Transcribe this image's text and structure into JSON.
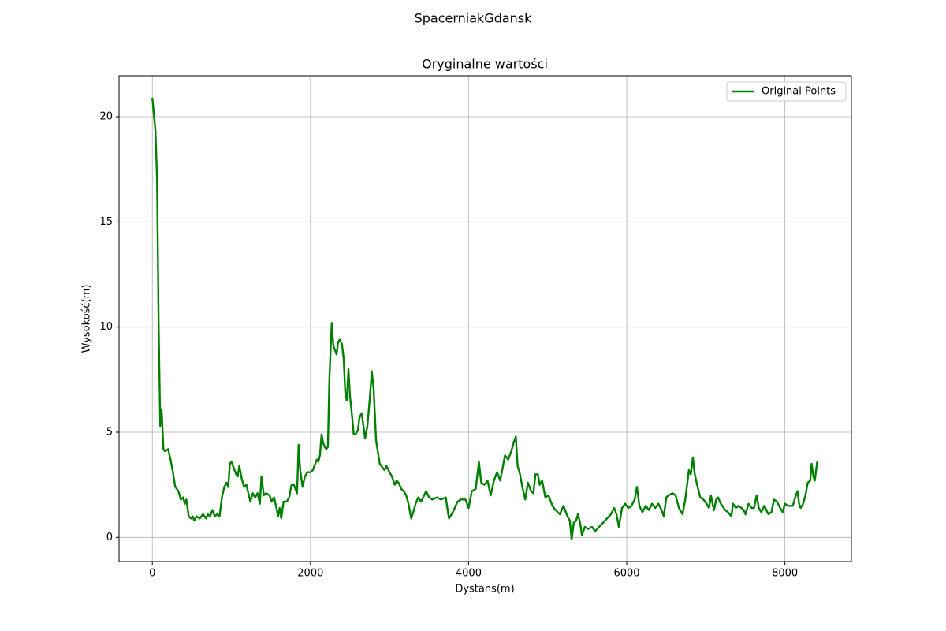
{
  "chart_data": {
    "type": "line",
    "suptitle": "SpacerniakGdansk",
    "title": "Oryginalne wartości",
    "xlabel": "Dystans(m)",
    "ylabel": "Wysokość(m)",
    "x": [
      0,
      40,
      60,
      80,
      100,
      110,
      120,
      140,
      160,
      200,
      230,
      260,
      290,
      330,
      360,
      390,
      410,
      430,
      460,
      490,
      510,
      530,
      560,
      600,
      640,
      680,
      700,
      730,
      760,
      790,
      820,
      850,
      880,
      910,
      940,
      960,
      980,
      1000,
      1020,
      1060,
      1080,
      1100,
      1130,
      1160,
      1190,
      1220,
      1240,
      1270,
      1300,
      1330,
      1360,
      1380,
      1410,
      1440,
      1480,
      1510,
      1540,
      1570,
      1590,
      1610,
      1630,
      1660,
      1700,
      1730,
      1760,
      1790,
      1810,
      1830,
      1850,
      1870,
      1900,
      1930,
      1960,
      2000,
      2030,
      2060,
      2080,
      2100,
      2120,
      2140,
      2160,
      2180,
      2200,
      2220,
      2240,
      2269,
      2290,
      2310,
      2330,
      2350,
      2370,
      2398,
      2420,
      2440,
      2460,
      2480,
      2500,
      2520,
      2547,
      2570,
      2600,
      2620,
      2647,
      2670,
      2690,
      2720,
      2750,
      2776,
      2800,
      2830,
      2876,
      2935,
      2960,
      3000,
      3030,
      3065,
      3090,
      3114,
      3150,
      3180,
      3210,
      3240,
      3274,
      3300,
      3330,
      3363,
      3400,
      3463,
      3500,
      3542,
      3600,
      3650,
      3711,
      3751,
      3800,
      3861,
      3900,
      3960,
      4000,
      4040,
      4090,
      4130,
      4160,
      4200,
      4240,
      4279,
      4320,
      4360,
      4400,
      4430,
      4460,
      4500,
      4540,
      4570,
      4597,
      4620,
      4650,
      4680,
      4716,
      4750,
      4790,
      4820,
      4845,
      4875,
      4900,
      4930,
      4970,
      5010,
      5060,
      5100,
      5154,
      5200,
      5250,
      5280,
      5303,
      5330,
      5360,
      5383,
      5410,
      5433,
      5470,
      5510,
      5560,
      5602,
      5650,
      5700,
      5750,
      5800,
      5841,
      5870,
      5900,
      5940,
      5980,
      6020,
      6060,
      6100,
      6129,
      6160,
      6199,
      6240,
      6280,
      6320,
      6360,
      6400,
      6440,
      6468,
      6500,
      6527,
      6580,
      6617,
      6660,
      6706,
      6740,
      6786,
      6810,
      6836,
      6860,
      6896,
      6930,
      6970,
      7010,
      7040,
      7065,
      7085,
      7104,
      7130,
      7154,
      7190,
      7244,
      7280,
      7323,
      7343,
      7380,
      7413,
      7450,
      7480,
      7502,
      7540,
      7580,
      7610,
      7642,
      7670,
      7701,
      7740,
      7791,
      7830,
      7861,
      7900,
      7940,
      7970,
      8000,
      8040,
      8070,
      8100,
      8130,
      8159,
      8180,
      8199,
      8230,
      8260,
      8289,
      8320,
      8338,
      8360,
      8378,
      8408
    ],
    "series": [
      {
        "name": "Original Points",
        "color": "#008000",
        "values": [
          20.9,
          19.3,
          17,
          10,
          5.3,
          6.1,
          5.9,
          4.2,
          4.1,
          4.2,
          3.7,
          3.1,
          2.4,
          2.2,
          1.8,
          1.9,
          1.6,
          1.8,
          1.0,
          0.9,
          1.0,
          0.8,
          1.0,
          0.9,
          1.1,
          0.9,
          1.1,
          1.0,
          1.3,
          1.0,
          1.1,
          1.0,
          1.9,
          2.4,
          2.6,
          2.4,
          3.5,
          3.6,
          3.4,
          3.0,
          2.9,
          3.4,
          2.8,
          2.4,
          2.5,
          2.0,
          1.7,
          2.1,
          1.9,
          2.1,
          1.6,
          2.9,
          2.0,
          2.1,
          2.0,
          1.7,
          1.9,
          1.4,
          1.0,
          1.4,
          0.9,
          1.7,
          1.7,
          1.9,
          2.5,
          2.5,
          2.3,
          2.1,
          4.4,
          3.2,
          2.4,
          2.9,
          3.1,
          3.1,
          3.2,
          3.5,
          3.7,
          3.6,
          3.9,
          4.9,
          4.5,
          4.3,
          4.2,
          4.3,
          7.6,
          10.2,
          9.1,
          8.9,
          8.7,
          9.3,
          9.4,
          9.2,
          8.5,
          6.9,
          6.5,
          8.0,
          6.7,
          6.0,
          4.9,
          4.9,
          5.1,
          5.7,
          5.9,
          5.3,
          4.7,
          5.3,
          6.6,
          7.9,
          7.0,
          4.6,
          3.5,
          3.2,
          3.4,
          3.1,
          2.9,
          2.5,
          2.7,
          2.6,
          2.3,
          2.2,
          2.0,
          1.6,
          0.9,
          1.2,
          1.6,
          1.9,
          1.7,
          2.2,
          1.9,
          1.8,
          1.9,
          1.8,
          1.9,
          0.9,
          1.2,
          1.7,
          1.8,
          1.8,
          1.4,
          2.2,
          2.3,
          3.6,
          2.6,
          2.5,
          2.7,
          2.0,
          2.7,
          3.1,
          2.7,
          3.3,
          3.9,
          3.7,
          4.1,
          4.5,
          4.8,
          3.4,
          3.0,
          2.4,
          1.8,
          2.6,
          2.2,
          2.1,
          3.0,
          3.0,
          2.5,
          2.7,
          1.9,
          2.0,
          1.5,
          1.3,
          1.1,
          1.5,
          1.0,
          0.8,
          -0.1,
          0.7,
          0.8,
          1.1,
          0.7,
          0.1,
          0.5,
          0.4,
          0.5,
          0.3,
          0.5,
          0.7,
          0.9,
          1.1,
          1.4,
          1.1,
          0.5,
          1.4,
          1.6,
          1.4,
          1.5,
          1.8,
          2.4,
          1.5,
          1.2,
          1.5,
          1.3,
          1.6,
          1.4,
          1.6,
          1.3,
          1.0,
          1.9,
          2.0,
          2.1,
          2.0,
          1.4,
          1.1,
          1.8,
          3.2,
          3.0,
          3.8,
          3.0,
          2.4,
          1.9,
          1.8,
          1.6,
          1.4,
          2.0,
          1.6,
          1.3,
          1.8,
          1.9,
          1.6,
          1.3,
          1.2,
          1.0,
          1.6,
          1.4,
          1.5,
          1.4,
          1.3,
          1.1,
          1.6,
          1.4,
          1.4,
          2.0,
          1.4,
          1.2,
          1.5,
          1.1,
          1.2,
          1.8,
          1.7,
          1.4,
          1.2,
          1.6,
          1.5,
          1.5,
          1.5,
          1.9,
          2.2,
          1.6,
          1.4,
          1.6,
          2.0,
          2.6,
          2.7,
          3.5,
          2.9,
          2.7,
          3.6
        ]
      }
    ],
    "xlim": [
      -421,
      8841
    ],
    "ylim": [
      -1.15,
      21.95
    ],
    "xticks": [
      0,
      2000,
      4000,
      6000,
      8000
    ],
    "yticks": [
      0,
      5,
      10,
      15,
      20
    ],
    "grid": true,
    "legend": "upper right"
  }
}
